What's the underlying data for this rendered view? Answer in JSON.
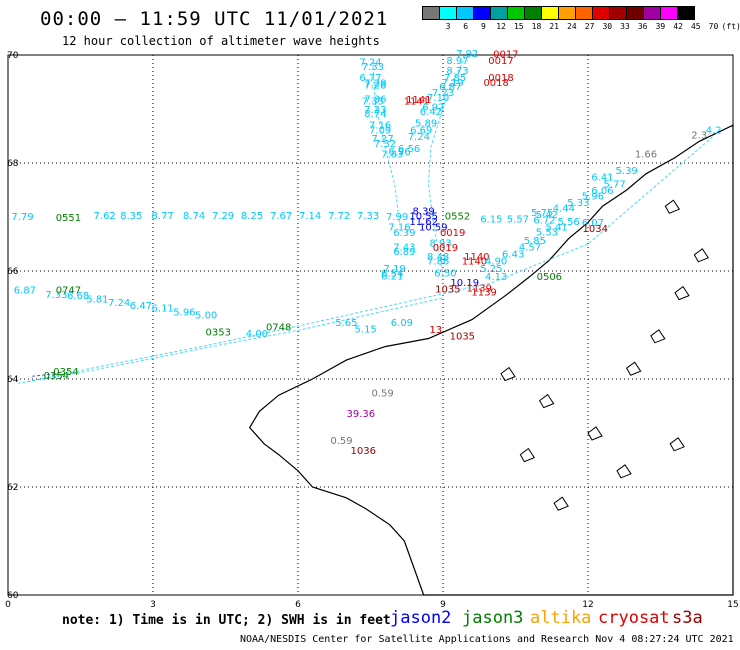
{
  "header": {
    "title": "00:00 – 11:59 UTC 11/01/2021",
    "subtitle": "12 hour collection of altimeter wave heights"
  },
  "color_scale": {
    "colors": [
      "#777777",
      "#00ffff",
      "#00c8ff",
      "#0000ff",
      "#00a0a0",
      "#00c800",
      "#008000",
      "#ffff00",
      "#ffa000",
      "#ff6000",
      "#e00000",
      "#a00000",
      "#700000",
      "#a000a0",
      "#ff00ff",
      "#000000"
    ],
    "labels": [
      "3",
      "6",
      "9",
      "12",
      "15",
      "18",
      "21",
      "24",
      "27",
      "30",
      "33",
      "36",
      "39",
      "42",
      "45",
      "70",
      "(ft)"
    ]
  },
  "axes": {
    "x_ticks": [
      "0",
      "3",
      "6",
      "9",
      "12",
      "15"
    ],
    "y_ticks": [
      "70",
      "68",
      "66",
      "64",
      "62",
      "60"
    ],
    "xlim": [
      0,
      15
    ],
    "ylim": [
      60,
      70
    ]
  },
  "observations": [
    {
      "text": "7.92",
      "lon": 9.5,
      "lat": 69.96,
      "color": "#00c8ff"
    },
    {
      "text": "0017",
      "lon": 10.3,
      "lat": 69.95,
      "color": "#e00000"
    },
    {
      "text": "8.97",
      "lon": 9.3,
      "lat": 69.83,
      "color": "#00c8ff"
    },
    {
      "text": "0017",
      "lon": 10.2,
      "lat": 69.83,
      "color": "#e00000"
    },
    {
      "text": "7.24",
      "lon": 7.5,
      "lat": 69.81,
      "color": "#00c8ff"
    },
    {
      "text": "7.33",
      "lon": 7.55,
      "lat": 69.72,
      "color": "#00c8ff"
    },
    {
      "text": "8.73",
      "lon": 9.3,
      "lat": 69.65,
      "color": "#00c8ff"
    },
    {
      "text": "6.77",
      "lon": 7.5,
      "lat": 69.52,
      "color": "#00c8ff"
    },
    {
      "text": "7.85",
      "lon": 9.25,
      "lat": 69.52,
      "color": "#00c8ff"
    },
    {
      "text": "0018",
      "lon": 10.2,
      "lat": 69.52,
      "color": "#e00000"
    },
    {
      "text": "7.28",
      "lon": 7.6,
      "lat": 69.42,
      "color": "#00c8ff"
    },
    {
      "text": "7.19",
      "lon": 9.2,
      "lat": 69.43,
      "color": "#00c8ff"
    },
    {
      "text": "0018",
      "lon": 10.1,
      "lat": 69.43,
      "color": "#e00000"
    },
    {
      "text": "7.28",
      "lon": 7.6,
      "lat": 69.38,
      "color": "#00c8ff"
    },
    {
      "text": "6.87",
      "lon": 9.15,
      "lat": 69.35,
      "color": "#00c8ff"
    },
    {
      "text": "7.23",
      "lon": 9.0,
      "lat": 69.24,
      "color": "#00c8ff"
    },
    {
      "text": "7.10",
      "lon": 8.9,
      "lat": 69.15,
      "color": "#00c8ff"
    },
    {
      "text": "7.36",
      "lon": 7.6,
      "lat": 69.12,
      "color": "#00c8ff"
    },
    {
      "text": "1141",
      "lon": 8.5,
      "lat": 69.11,
      "color": "#e00000"
    },
    {
      "text": "7.35",
      "lon": 7.55,
      "lat": 69.08,
      "color": "#00c8ff"
    },
    {
      "text": "1141",
      "lon": 8.45,
      "lat": 69.08,
      "color": "#e00000"
    },
    {
      "text": "6.92",
      "lon": 8.8,
      "lat": 68.97,
      "color": "#00c8ff"
    },
    {
      "text": "7.23",
      "lon": 7.6,
      "lat": 68.93,
      "color": "#00c8ff"
    },
    {
      "text": "6.42",
      "lon": 8.75,
      "lat": 68.89,
      "color": "#00c8ff"
    },
    {
      "text": "8.74",
      "lon": 7.6,
      "lat": 68.85,
      "color": "#00c8ff"
    },
    {
      "text": "5.89",
      "lon": 8.65,
      "lat": 68.68,
      "color": "#00c8ff"
    },
    {
      "text": "7.16",
      "lon": 7.7,
      "lat": 68.64,
      "color": "#00c8ff"
    },
    {
      "text": "6.69",
      "lon": 8.55,
      "lat": 68.55,
      "color": "#00c8ff"
    },
    {
      "text": "7.09",
      "lon": 7.7,
      "lat": 68.55,
      "color": "#00c8ff"
    },
    {
      "text": "7.24",
      "lon": 8.5,
      "lat": 68.43,
      "color": "#00c8ff"
    },
    {
      "text": "7.27",
      "lon": 7.75,
      "lat": 68.39,
      "color": "#00c8ff"
    },
    {
      "text": "7.32",
      "lon": 7.8,
      "lat": 68.3,
      "color": "#00c8ff"
    },
    {
      "text": "6.56",
      "lon": 8.3,
      "lat": 68.2,
      "color": "#00c8ff"
    },
    {
      "text": "6.96",
      "lon": 8.1,
      "lat": 68.15,
      "color": "#00c8ff"
    },
    {
      "text": "7.83",
      "lon": 7.95,
      "lat": 68.1,
      "color": "#00c8ff"
    },
    {
      "text": "7.79",
      "lon": 0.3,
      "lat": 66.94,
      "color": "#00c8ff"
    },
    {
      "text": "0551",
      "lon": 1.25,
      "lat": 66.93,
      "color": "#008000"
    },
    {
      "text": "7.62",
      "lon": 2.0,
      "lat": 66.96,
      "color": "#00c8ff"
    },
    {
      "text": "8.35",
      "lon": 2.55,
      "lat": 66.96,
      "color": "#00c8ff"
    },
    {
      "text": "8.77",
      "lon": 3.2,
      "lat": 66.96,
      "color": "#00c8ff"
    },
    {
      "text": "8.74",
      "lon": 3.85,
      "lat": 66.96,
      "color": "#00c8ff"
    },
    {
      "text": "7.29",
      "lon": 4.45,
      "lat": 66.96,
      "color": "#00c8ff"
    },
    {
      "text": "8.25",
      "lon": 5.05,
      "lat": 66.96,
      "color": "#00c8ff"
    },
    {
      "text": "7.67",
      "lon": 5.65,
      "lat": 66.96,
      "color": "#00c8ff"
    },
    {
      "text": "7.14",
      "lon": 6.25,
      "lat": 66.96,
      "color": "#00c8ff"
    },
    {
      "text": "7.72",
      "lon": 6.85,
      "lat": 66.96,
      "color": "#00c8ff"
    },
    {
      "text": "7.33",
      "lon": 7.45,
      "lat": 66.96,
      "color": "#00c8ff"
    },
    {
      "text": "7.99",
      "lon": 8.05,
      "lat": 66.94,
      "color": "#00c8ff"
    },
    {
      "text": "8.39",
      "lon": 8.6,
      "lat": 67.05,
      "color": "#0000ff"
    },
    {
      "text": "10.55",
      "lon": 8.6,
      "lat": 66.95,
      "color": "#0000ff"
    },
    {
      "text": "0552",
      "lon": 9.3,
      "lat": 66.95,
      "color": "#008000"
    },
    {
      "text": "6.15",
      "lon": 10.0,
      "lat": 66.9,
      "color": "#00c8ff"
    },
    {
      "text": "5.57",
      "lon": 10.55,
      "lat": 66.9,
      "color": "#00c8ff"
    },
    {
      "text": "6.72",
      "lon": 11.1,
      "lat": 66.88,
      "color": "#00c8ff"
    },
    {
      "text": "5.56",
      "lon": 11.6,
      "lat": 66.85,
      "color": "#00c8ff"
    },
    {
      "text": "6.07",
      "lon": 12.1,
      "lat": 66.83,
      "color": "#00c8ff"
    },
    {
      "text": "11.62",
      "lon": 8.6,
      "lat": 66.85,
      "color": "#0000ff"
    },
    {
      "text": "7.16",
      "lon": 8.1,
      "lat": 66.75,
      "color": "#00c8ff"
    },
    {
      "text": "10.59",
      "lon": 8.8,
      "lat": 66.75,
      "color": "#0000ff"
    },
    {
      "text": "6.39",
      "lon": 8.2,
      "lat": 66.65,
      "color": "#00c8ff"
    },
    {
      "text": "0019",
      "lon": 9.2,
      "lat": 66.65,
      "color": "#e00000"
    },
    {
      "text": "5.41",
      "lon": 11.35,
      "lat": 66.75,
      "color": "#00c8ff"
    },
    {
      "text": "5.53",
      "lon": 11.15,
      "lat": 66.66,
      "color": "#00c8ff"
    },
    {
      "text": "1034",
      "lon": 12.15,
      "lat": 66.72,
      "color": "#a00000"
    },
    {
      "text": "5.85",
      "lon": 10.9,
      "lat": 66.5,
      "color": "#00c8ff"
    },
    {
      "text": "8.93",
      "lon": 8.95,
      "lat": 66.45,
      "color": "#00c8ff"
    },
    {
      "text": "7.43",
      "lon": 8.2,
      "lat": 66.38,
      "color": "#00c8ff"
    },
    {
      "text": "0019",
      "lon": 9.05,
      "lat": 66.37,
      "color": "#e00000"
    },
    {
      "text": "4.57",
      "lon": 10.8,
      "lat": 66.38,
      "color": "#00c8ff"
    },
    {
      "text": "6.89",
      "lon": 8.2,
      "lat": 66.3,
      "color": "#00c8ff"
    },
    {
      "text": "6.43",
      "lon": 10.45,
      "lat": 66.25,
      "color": "#00c8ff"
    },
    {
      "text": "8.48",
      "lon": 8.9,
      "lat": 66.2,
      "color": "#00c8ff"
    },
    {
      "text": "1140",
      "lon": 9.7,
      "lat": 66.2,
      "color": "#e00000"
    },
    {
      "text": "7.86",
      "lon": 8.9,
      "lat": 66.12,
      "color": "#00c8ff"
    },
    {
      "text": "1140",
      "lon": 9.65,
      "lat": 66.12,
      "color": "#e00000"
    },
    {
      "text": "4.90",
      "lon": 10.1,
      "lat": 66.12,
      "color": "#00c8ff"
    },
    {
      "text": "7.19",
      "lon": 8.0,
      "lat": 65.98,
      "color": "#00c8ff"
    },
    {
      "text": "5.25",
      "lon": 10.0,
      "lat": 65.98,
      "color": "#00c8ff"
    },
    {
      "text": "6.54",
      "lon": 7.95,
      "lat": 65.9,
      "color": "#00c8ff"
    },
    {
      "text": "6.50",
      "lon": 9.05,
      "lat": 65.9,
      "color": "#00c8ff"
    },
    {
      "text": "6.21",
      "lon": 7.95,
      "lat": 65.84,
      "color": "#00c8ff"
    },
    {
      "text": "4.13",
      "lon": 10.1,
      "lat": 65.83,
      "color": "#00c8ff"
    },
    {
      "text": "0506",
      "lon": 11.2,
      "lat": 65.83,
      "color": "#008000"
    },
    {
      "text": "10.19",
      "lon": 9.45,
      "lat": 65.72,
      "color": "#0000ff"
    },
    {
      "text": "6.87",
      "lon": 0.35,
      "lat": 65.58,
      "color": "#00c8ff"
    },
    {
      "text": "0747",
      "lon": 1.25,
      "lat": 65.58,
      "color": "#008000"
    },
    {
      "text": "7.33",
      "lon": 1.0,
      "lat": 65.5,
      "color": "#00c8ff"
    },
    {
      "text": "6.68",
      "lon": 1.45,
      "lat": 65.48,
      "color": "#00c8ff"
    },
    {
      "text": "5.81",
      "lon": 1.85,
      "lat": 65.42,
      "color": "#00c8ff"
    },
    {
      "text": "7.24",
      "lon": 2.3,
      "lat": 65.35,
      "color": "#00c8ff"
    },
    {
      "text": "6.47",
      "lon": 2.75,
      "lat": 65.3,
      "color": "#00c8ff"
    },
    {
      "text": "6.11",
      "lon": 3.2,
      "lat": 65.25,
      "color": "#00c8ff"
    },
    {
      "text": "5.96",
      "lon": 3.65,
      "lat": 65.18,
      "color": "#00c8ff"
    },
    {
      "text": "5.00",
      "lon": 4.1,
      "lat": 65.12,
      "color": "#00c8ff"
    },
    {
      "text": "1035",
      "lon": 9.1,
      "lat": 65.6,
      "color": "#a00000"
    },
    {
      "text": "1139",
      "lon": 9.85,
      "lat": 65.55,
      "color": "#e00000"
    },
    {
      "text": "1139",
      "lon": 9.75,
      "lat": 65.62,
      "color": "#e00000"
    },
    {
      "text": "0748",
      "lon": 5.6,
      "lat": 64.9,
      "color": "#008000"
    },
    {
      "text": "0353",
      "lon": 4.35,
      "lat": 64.81,
      "color": "#008000"
    },
    {
      "text": "4.00",
      "lon": 5.15,
      "lat": 64.78,
      "color": "#00c8ff"
    },
    {
      "text": "5.65",
      "lon": 7.0,
      "lat": 64.98,
      "color": "#00c8ff"
    },
    {
      "text": "5.15",
      "lon": 7.4,
      "lat": 64.86,
      "color": "#00c8ff"
    },
    {
      "text": "6.09",
      "lon": 8.15,
      "lat": 64.98,
      "color": "#00c8ff"
    },
    {
      "text": "1035",
      "lon": 9.4,
      "lat": 64.73,
      "color": "#a00000"
    },
    {
      "text": "13",
      "lon": 8.85,
      "lat": 64.85,
      "color": "#e00000"
    },
    {
      "text": "0354",
      "lon": 1.2,
      "lat": 64.07,
      "color": "#008000"
    },
    {
      "text": "0354",
      "lon": 1.0,
      "lat": 64.0,
      "color": "#008000"
    },
    {
      "text": "0.59",
      "lon": 7.75,
      "lat": 63.68,
      "color": "#777777"
    },
    {
      "text": "39.36",
      "lon": 7.3,
      "lat": 63.3,
      "color": "#a000a0"
    },
    {
      "text": "0.59",
      "lon": 6.9,
      "lat": 62.8,
      "color": "#777777"
    },
    {
      "text": "1036",
      "lon": 7.35,
      "lat": 62.61,
      "color": "#a00000"
    },
    {
      "text": "6.41",
      "lon": 12.3,
      "lat": 67.68,
      "color": "#00c8ff"
    },
    {
      "text": "5.77",
      "lon": 12.55,
      "lat": 67.55,
      "color": "#00c8ff"
    },
    {
      "text": "6.06",
      "lon": 12.3,
      "lat": 67.43,
      "color": "#00c8ff"
    },
    {
      "text": "5.96",
      "lon": 12.1,
      "lat": 67.32,
      "color": "#00c8ff"
    },
    {
      "text": "5.33",
      "lon": 11.8,
      "lat": 67.2,
      "color": "#00c8ff"
    },
    {
      "text": "4.44",
      "lon": 11.5,
      "lat": 67.1,
      "color": "#00c8ff"
    },
    {
      "text": "5.42",
      "lon": 11.15,
      "lat": 66.98,
      "color": "#00c8ff"
    },
    {
      "text": "5.75",
      "lon": 11.05,
      "lat": 67.02,
      "color": "#00c8ff"
    },
    {
      "text": "5.39",
      "lon": 12.8,
      "lat": 67.8,
      "color": "#00c8ff"
    },
    {
      "text": "1.66",
      "lon": 13.2,
      "lat": 68.1,
      "color": "#777777"
    },
    {
      "text": "2.3",
      "lon": 14.3,
      "lat": 68.45,
      "color": "#777777"
    },
    {
      "text": "4.2",
      "lon": 14.6,
      "lat": 68.55,
      "color": "#00c8ff"
    }
  ],
  "tracks": [
    {
      "color": "#00c8ff",
      "points": [
        [
          0.4,
          63.95
        ],
        [
          2.0,
          64.25
        ],
        [
          4.0,
          64.6
        ],
        [
          6.0,
          64.98
        ],
        [
          8.0,
          65.38
        ],
        [
          10.0,
          65.78
        ],
        [
          12.0,
          66.5
        ],
        [
          14.6,
          68.5
        ]
      ]
    },
    {
      "color": "#00c8ff",
      "points": [
        [
          0.2,
          63.92
        ],
        [
          1.5,
          64.12
        ],
        [
          3.0,
          64.38
        ],
        [
          4.5,
          64.65
        ],
        [
          6.0,
          64.9
        ],
        [
          7.5,
          65.2
        ],
        [
          9.0,
          65.5
        ]
      ]
    },
    {
      "color": "#00c8ff",
      "points": [
        [
          8.1,
          66.9
        ],
        [
          8.0,
          67.6
        ],
        [
          7.8,
          68.3
        ],
        [
          7.6,
          69.1
        ],
        [
          7.55,
          69.8
        ]
      ]
    },
    {
      "color": "#00c8ff",
      "points": [
        [
          9.0,
          65.9
        ],
        [
          8.8,
          66.9
        ],
        [
          8.7,
          67.6
        ],
        [
          8.75,
          68.3
        ],
        [
          9.1,
          69.3
        ],
        [
          9.45,
          69.95
        ]
      ]
    },
    {
      "color": "#0000ff",
      "points": [
        [
          0.5,
          64.05
        ],
        [
          1.0,
          64.1
        ]
      ]
    }
  ],
  "footer": {
    "note": "note:  1) Time is in UTC;  2) SWH is in feet",
    "credit": "NOAA/NESDIS Center for Satellite Applications and Research    Nov  4 08:27:24 UTC 2021"
  },
  "legend": [
    {
      "label": "jason2",
      "color": "#0000ff"
    },
    {
      "label": "jason3",
      "color": "#008000"
    },
    {
      "label": "altika",
      "color": "#ffa000"
    },
    {
      "label": "cryosat",
      "color": "#e00000"
    },
    {
      "label": "s3a",
      "color": "#a00000"
    }
  ]
}
